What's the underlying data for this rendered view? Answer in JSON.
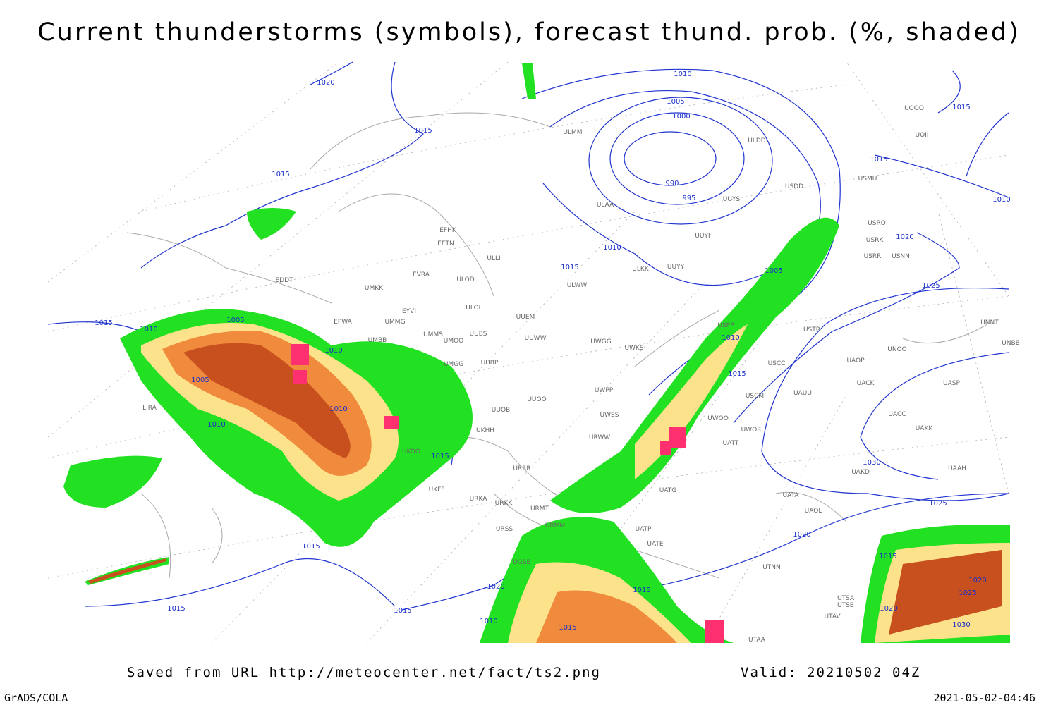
{
  "title": "Current thunderstorms (symbols), forecast thund. prob. (%, shaded)",
  "footer": {
    "source": "Saved from URL http://meteocenter.net/fact/ts2.png",
    "valid": "Valid: 20210502 04Z"
  },
  "credit": "GrADS/COLA",
  "timestamp": "2021-05-02-04:46",
  "isobar_labels": [
    1020,
    1015,
    1015,
    1010,
    1005,
    1000,
    990,
    995,
    1015,
    1010,
    1015,
    1020,
    1010,
    1015,
    1005,
    1025,
    1015,
    1010,
    1005,
    1010,
    1005,
    1010,
    1010,
    1015,
    1010,
    1015,
    1030,
    1025,
    1020,
    1015,
    1015,
    1020,
    1015,
    1015,
    1010,
    1015,
    1015,
    1020,
    1025,
    1020,
    1030
  ],
  "station_labels": [
    "ULMM",
    "ULDD",
    "USDD",
    "UUYS",
    "ULAA",
    "UUYH",
    "UUYY",
    "ULKK",
    "ULWW",
    "EFHK",
    "EETN",
    "ULLI",
    "EVRA",
    "ULOD",
    "UMKK",
    "EDDT",
    "EYVI",
    "ULOL",
    "UUEM",
    "EPWA",
    "UMMG",
    "UMMS",
    "UUBS",
    "UMOO",
    "UUWW",
    "UWGG",
    "UWKS",
    "UMBB",
    "UMGG",
    "UUBP",
    "UUOO",
    "UWPP",
    "UUOB",
    "UWSS",
    "URWW",
    "UKHH",
    "UKOO",
    "URRR",
    "UKFF",
    "URKA",
    "URKK",
    "URMT",
    "URMM",
    "URSS",
    "UGSB",
    "LIRA",
    "UATG",
    "UATP",
    "UATE",
    "UWOO",
    "UWOR",
    "UATT",
    "USCM",
    "USCC",
    "UAUU",
    "USTR",
    "USPP",
    "UNOO",
    "UNNT",
    "UNBB",
    "UAOP",
    "UACK",
    "UASP",
    "UACC",
    "UAKK",
    "UAKD",
    "UAAH",
    "UATA",
    "UAOL",
    "UTNN",
    "UTSA",
    "UTSB",
    "UTAV",
    "UTAA",
    "USRR",
    "USNN",
    "USRK",
    "USRO",
    "USMU",
    "UOOO",
    "UOII"
  ]
}
